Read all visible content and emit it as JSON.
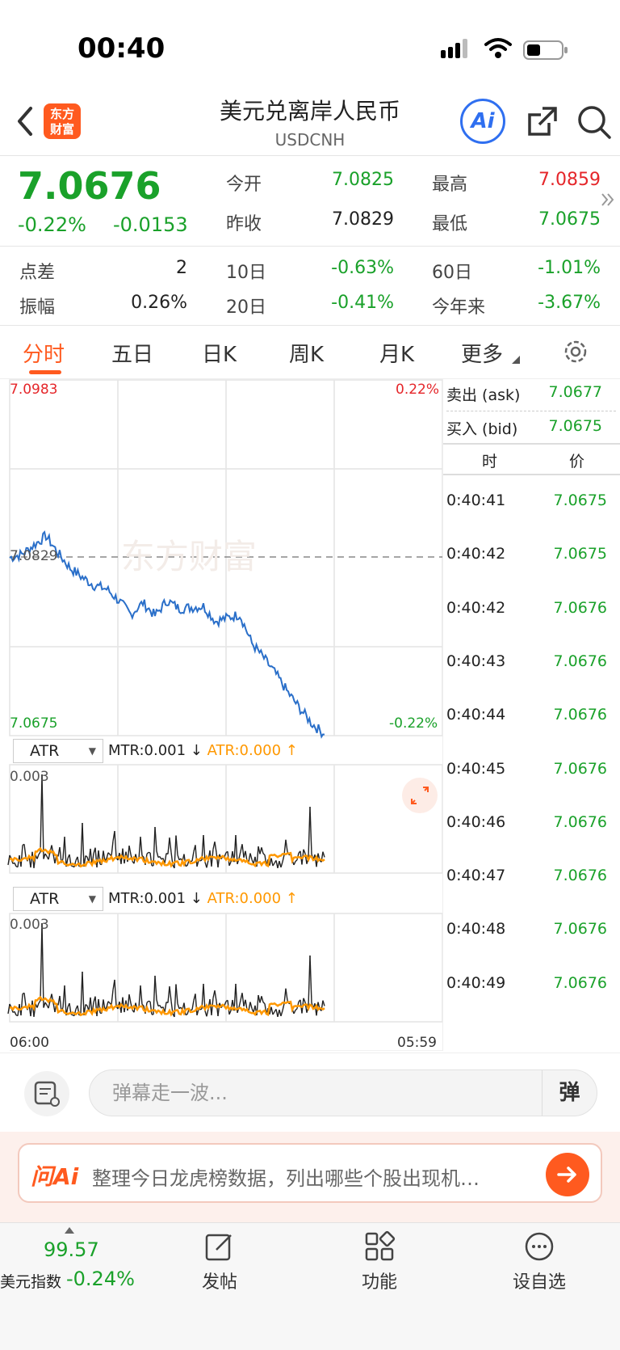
{
  "status": {
    "time": "00:40"
  },
  "header": {
    "logo_text_line1": "东方",
    "logo_text_line2": "财富",
    "title": "美元兑离岸人民币",
    "subtitle": "USDCNH",
    "ai_label": "Ai"
  },
  "quote": {
    "price": "7.0676",
    "change_pct": "-0.22%",
    "change_abs": "-0.0153",
    "rows": [
      {
        "l1": "今开",
        "v1": "7.0825",
        "c1": "green",
        "l2": "最高",
        "v2": "7.0859",
        "c2": "red"
      },
      {
        "l1": "昨收",
        "v1": "7.0829",
        "c1": "dark",
        "l2": "最低",
        "v2": "7.0675",
        "c2": "green"
      }
    ],
    "stats": [
      {
        "l0": "点差",
        "v0": "2",
        "l1": "10日",
        "v1": "-0.63%",
        "l2": "60日",
        "v2": "-1.01%"
      },
      {
        "l0": "振幅",
        "v0": "0.26%",
        "l1": "20日",
        "v1": "-0.41%",
        "l2": "今年来",
        "v2": "-3.67%"
      }
    ]
  },
  "tabs": [
    "分时",
    "五日",
    "日K",
    "周K",
    "月K",
    "更多"
  ],
  "chart": {
    "top_price": "7.0983",
    "top_pct": "0.22%",
    "prev_close_label": "7.0829",
    "bottom_price": "7.0675",
    "bottom_pct": "-0.22%",
    "watermark": "东方财富",
    "x_start": "06:00",
    "x_end": "05:59",
    "indicator1": {
      "name": "ATR",
      "mtr": "MTR:0.001 ↓",
      "atr": "ATR:0.000 ↑",
      "max": "0.003"
    },
    "indicator2": {
      "name": "ATR",
      "mtr": "MTR:0.001 ↓",
      "atr": "ATR:0.000 ↑",
      "max": "0.003"
    }
  },
  "chart_data": {
    "type": "line",
    "title": "",
    "xlabel": "",
    "ylabel": "",
    "x_range": [
      "06:00",
      "05:59"
    ],
    "ylim": [
      7.0675,
      7.0983
    ],
    "reference_line": 7.0829,
    "series": [
      {
        "values": [
          7.0829,
          7.0832,
          7.084,
          7.0848,
          7.0833,
          7.082,
          7.0812,
          7.0805,
          7.0802,
          7.0792,
          7.078,
          7.079,
          7.0779,
          7.0792,
          7.0785,
          7.0786,
          7.0787,
          7.0774,
          7.0777,
          7.078,
          7.0755,
          7.0742,
          7.0728,
          7.0712,
          7.0698,
          7.0685,
          7.0676
        ]
      }
    ]
  },
  "ticks": {
    "ask_label": "卖出 (ask)",
    "ask": "7.0677",
    "bid_label": "买入 (bid)",
    "bid": "7.0675",
    "col_time": "时",
    "col_price": "价",
    "rows": [
      {
        "time": "0:40:41",
        "price": "7.0675"
      },
      {
        "time": "0:40:42",
        "price": "7.0675"
      },
      {
        "time": "0:40:42",
        "price": "7.0676"
      },
      {
        "time": "0:40:43",
        "price": "7.0676"
      },
      {
        "time": "0:40:44",
        "price": "7.0676"
      },
      {
        "time": "0:40:45",
        "price": "7.0676"
      },
      {
        "time": "0:40:46",
        "price": "7.0676"
      },
      {
        "time": "0:40:47",
        "price": "7.0676"
      },
      {
        "time": "0:40:48",
        "price": "7.0676"
      },
      {
        "time": "0:40:49",
        "price": "7.0676"
      }
    ]
  },
  "comment": {
    "placeholder": "弹幕走一波...",
    "send_label": "弹"
  },
  "ai_bar": {
    "brand": "问Ai",
    "prompt": "整理今日龙虎榜数据，列出哪些个股出现机…"
  },
  "bottom": {
    "index_value": "99.57",
    "index_name": "美元指数",
    "index_change": "-0.24%",
    "nav": [
      "发帖",
      "功能",
      "设自选"
    ]
  },
  "colors": {
    "accent": "#ff5a1f",
    "up": "#e5262a",
    "down": "#1aa12a",
    "line": "#2a6fc9",
    "atr": "#ff9800"
  }
}
